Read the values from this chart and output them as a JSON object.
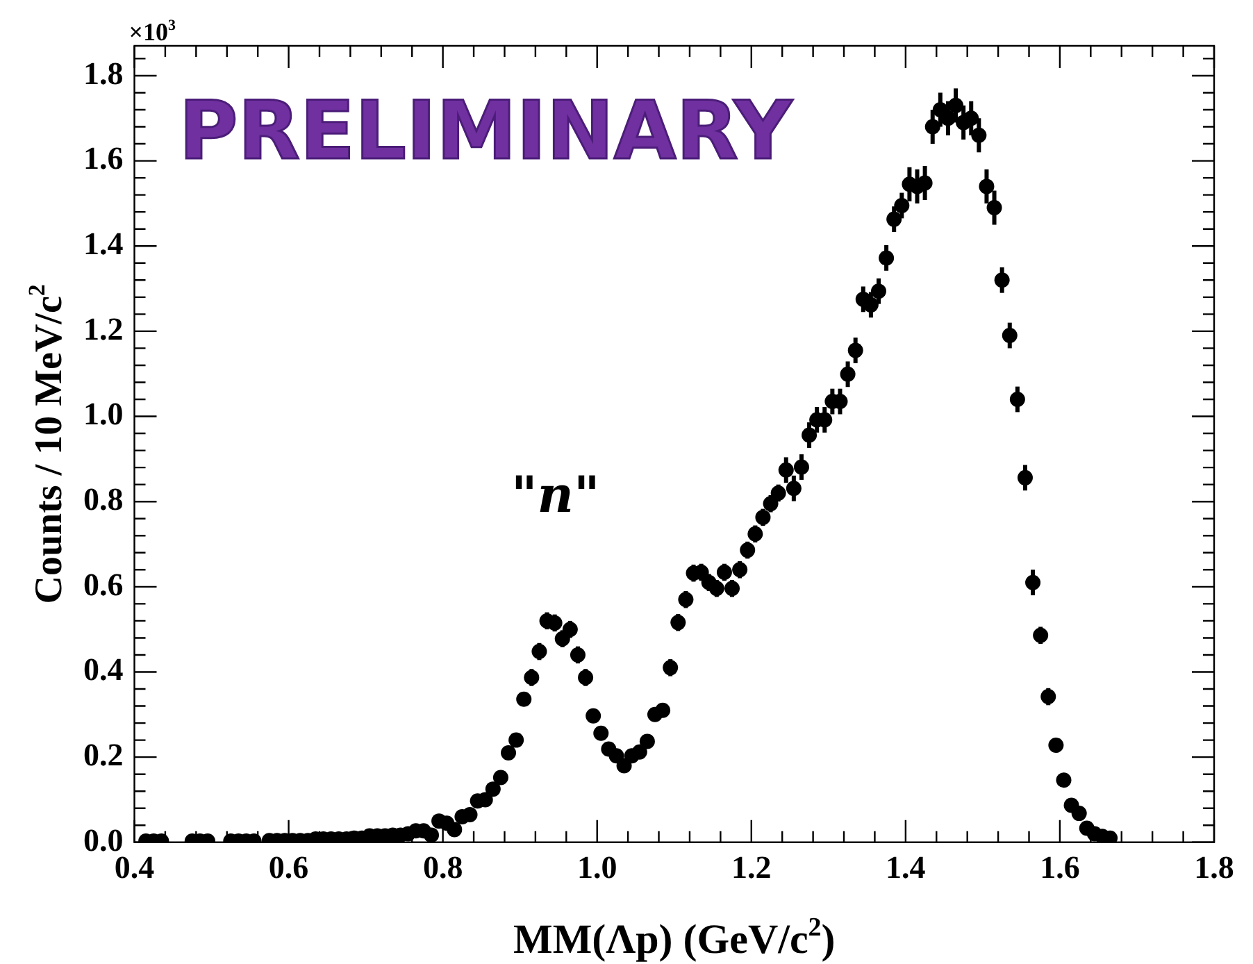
{
  "chart_data": {
    "type": "scatter",
    "xlabel": "MM(Λp) (GeV/c$^{2}$)",
    "ylabel": "Counts / 10 MeV/c$^{2}$",
    "annotations": [
      "PRELIMINARY",
      "×10$^{3}$",
      "\"n\""
    ],
    "xlim": [
      0.4,
      1.8
    ],
    "ylim": [
      0,
      1.87
    ],
    "xticks": [
      {
        "value": 0.4,
        "label": "0.4"
      },
      {
        "value": 0.6,
        "label": "0.6"
      },
      {
        "value": 0.8,
        "label": "0.8"
      },
      {
        "value": 1.0,
        "label": "1.0"
      },
      {
        "value": 1.2,
        "label": "1.2"
      },
      {
        "value": 1.4,
        "label": "1.4"
      },
      {
        "value": 1.6,
        "label": "1.6"
      },
      {
        "value": 1.8,
        "label": "1.8"
      }
    ],
    "yticks": [
      {
        "value": 0,
        "label": "0.0"
      },
      {
        "value": 0.2,
        "label": "0.2"
      },
      {
        "value": 0.4,
        "label": "0.4"
      },
      {
        "value": 0.6,
        "label": "0.6"
      },
      {
        "value": 0.8,
        "label": "0.8"
      },
      {
        "value": 1.0,
        "label": "1.0"
      },
      {
        "value": 1.2,
        "label": "1.2"
      },
      {
        "value": 1.4,
        "label": "1.4"
      },
      {
        "value": 1.6,
        "label": "1.6"
      },
      {
        "value": 1.8,
        "label": "1.8"
      }
    ],
    "grid": false,
    "legend": false,
    "marker": "circle",
    "series": [
      {
        "color": "#000000",
        "x": [
          0.415,
          0.425,
          0.435,
          0.475,
          0.485,
          0.495,
          0.525,
          0.535,
          0.545,
          0.555,
          0.575,
          0.585,
          0.595,
          0.605,
          0.615,
          0.625,
          0.635,
          0.645,
          0.655,
          0.665,
          0.675,
          0.685,
          0.695,
          0.705,
          0.715,
          0.725,
          0.735,
          0.745,
          0.755,
          0.765,
          0.775,
          0.785,
          0.795,
          0.805,
          0.815,
          0.825,
          0.835,
          0.845,
          0.855,
          0.865,
          0.875,
          0.885,
          0.895,
          0.905,
          0.915,
          0.925,
          0.935,
          0.945,
          0.955,
          0.965,
          0.975,
          0.985,
          0.995,
          1.005,
          1.015,
          1.025,
          1.035,
          1.045,
          1.055,
          1.065,
          1.075,
          1.085,
          1.095,
          1.105,
          1.115,
          1.125,
          1.135,
          1.145,
          1.155,
          1.165,
          1.175,
          1.185,
          1.195,
          1.205,
          1.215,
          1.225,
          1.235,
          1.245,
          1.255,
          1.265,
          1.275,
          1.285,
          1.295,
          1.305,
          1.315,
          1.325,
          1.335,
          1.345,
          1.355,
          1.365,
          1.375,
          1.385,
          1.395,
          1.405,
          1.415,
          1.425,
          1.435,
          1.445,
          1.455,
          1.465,
          1.475,
          1.485,
          1.495,
          1.505,
          1.515,
          1.525,
          1.535,
          1.545,
          1.555,
          1.565,
          1.575,
          1.585,
          1.595,
          1.605,
          1.615,
          1.625,
          1.635,
          1.645,
          1.655,
          1.665
        ],
        "values": [
          0.003,
          0.003,
          0.003,
          0.003,
          0.003,
          0.003,
          0.003,
          0.003,
          0.003,
          0.003,
          0.004,
          0.004,
          0.004,
          0.004,
          0.004,
          0.004,
          0.008,
          0.008,
          0.008,
          0.008,
          0.008,
          0.01,
          0.01,
          0.015,
          0.015,
          0.015,
          0.017,
          0.017,
          0.02,
          0.027,
          0.027,
          0.017,
          0.05,
          0.045,
          0.03,
          0.06,
          0.065,
          0.097,
          0.1,
          0.125,
          0.152,
          0.21,
          0.24,
          0.336,
          0.387,
          0.448,
          0.52,
          0.515,
          0.478,
          0.5,
          0.44,
          0.387,
          0.297,
          0.256,
          0.219,
          0.203,
          0.18,
          0.203,
          0.212,
          0.237,
          0.3,
          0.31,
          0.41,
          0.516,
          0.57,
          0.632,
          0.634,
          0.61,
          0.596,
          0.634,
          0.596,
          0.64,
          0.686,
          0.724,
          0.763,
          0.795,
          0.82,
          0.874,
          0.831,
          0.881,
          0.956,
          0.992,
          0.992,
          1.035,
          1.035,
          1.099,
          1.155,
          1.275,
          1.262,
          1.294,
          1.372,
          1.463,
          1.495,
          1.545,
          1.54,
          1.548,
          1.68,
          1.72,
          1.7,
          1.73,
          1.69,
          1.7,
          1.66,
          1.54,
          1.49,
          1.32,
          1.19,
          1.04,
          0.856,
          0.61,
          0.486,
          0.342,
          0.228,
          0.146,
          0.087,
          0.068,
          0.033,
          0.02,
          0.014,
          0.01
        ],
        "errors": [
          null,
          null,
          null,
          null,
          null,
          null,
          null,
          null,
          null,
          null,
          null,
          null,
          null,
          null,
          null,
          null,
          null,
          null,
          null,
          null,
          null,
          null,
          null,
          null,
          null,
          null,
          null,
          null,
          null,
          null,
          null,
          null,
          null,
          null,
          null,
          null,
          null,
          null,
          null,
          null,
          null,
          null,
          null,
          null,
          0.02,
          0.02,
          0.02,
          0.02,
          0.02,
          0.02,
          0.02,
          0.02,
          null,
          null,
          null,
          null,
          null,
          null,
          null,
          null,
          null,
          null,
          0.02,
          0.02,
          0.02,
          0.02,
          0.02,
          0.02,
          0.02,
          0.02,
          0.02,
          0.02,
          0.02,
          0.02,
          0.02,
          0.02,
          0.02,
          0.03,
          0.03,
          0.03,
          0.03,
          0.03,
          0.03,
          0.03,
          0.03,
          0.03,
          0.03,
          0.03,
          0.03,
          0.03,
          0.03,
          0.03,
          0.03,
          0.04,
          0.04,
          0.04,
          0.04,
          0.04,
          0.04,
          0.04,
          0.04,
          0.04,
          0.04,
          0.04,
          0.04,
          0.03,
          0.03,
          0.03,
          0.03,
          0.03,
          0.02,
          0.02,
          null,
          null,
          null,
          null,
          null,
          null,
          null,
          null
        ]
      }
    ]
  }
}
